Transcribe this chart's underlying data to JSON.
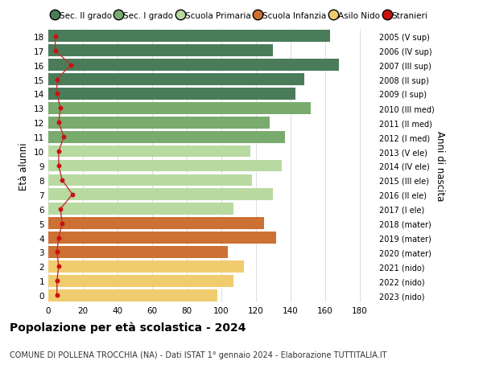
{
  "ages": [
    18,
    17,
    16,
    15,
    14,
    13,
    12,
    11,
    10,
    9,
    8,
    7,
    6,
    5,
    4,
    3,
    2,
    1,
    0
  ],
  "values": [
    163,
    130,
    168,
    148,
    143,
    152,
    128,
    137,
    117,
    135,
    118,
    130,
    107,
    125,
    132,
    104,
    113,
    107,
    98
  ],
  "stranieri": [
    4,
    4,
    13,
    5,
    5,
    7,
    6,
    9,
    6,
    6,
    8,
    14,
    7,
    8,
    6,
    5,
    6,
    5,
    5
  ],
  "bar_colors": [
    "#4a7c59",
    "#4a7c59",
    "#4a7c59",
    "#4a7c59",
    "#4a7c59",
    "#7aab6e",
    "#7aab6e",
    "#7aab6e",
    "#b8d9a0",
    "#b8d9a0",
    "#b8d9a0",
    "#b8d9a0",
    "#b8d9a0",
    "#cc7033",
    "#cc7033",
    "#cc7033",
    "#f0cc6e",
    "#f0cc6e",
    "#f0cc6e"
  ],
  "right_labels": [
    "2005 (V sup)",
    "2006 (IV sup)",
    "2007 (III sup)",
    "2008 (II sup)",
    "2009 (I sup)",
    "2010 (III med)",
    "2011 (II med)",
    "2012 (I med)",
    "2013 (V ele)",
    "2014 (IV ele)",
    "2015 (III ele)",
    "2016 (II ele)",
    "2017 (I ele)",
    "2018 (mater)",
    "2019 (mater)",
    "2020 (mater)",
    "2021 (nido)",
    "2022 (nido)",
    "2023 (nido)"
  ],
  "legend_labels": [
    "Sec. II grado",
    "Sec. I grado",
    "Scuola Primaria",
    "Scuola Infanzia",
    "Asilo Nido",
    "Stranieri"
  ],
  "legend_colors": [
    "#4a7c59",
    "#7aab6e",
    "#b8d9a0",
    "#cc7033",
    "#f0cc6e",
    "#cc1111"
  ],
  "ylabel": "Età alunni",
  "title": "Popolazione per età scolastica - 2024",
  "subtitle": "COMUNE DI POLLENA TROCCHIA (NA) - Dati ISTAT 1° gennaio 2024 - Elaborazione TUTTITALIA.IT",
  "xlim": [
    0,
    190
  ],
  "xticks": [
    0,
    20,
    40,
    60,
    80,
    100,
    120,
    140,
    160,
    180
  ],
  "right_axis_label": "Anni di nascita",
  "stranieri_color": "#cc1111",
  "stranieri_line_color": "#bb3333",
  "bg_color": "#ffffff",
  "grid_color": "#dddddd"
}
